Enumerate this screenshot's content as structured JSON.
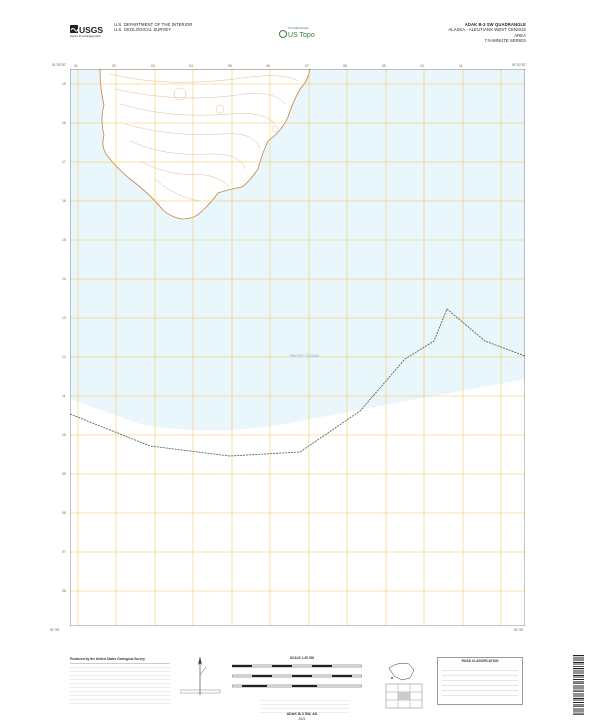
{
  "header": {
    "agency_line1": "U.S. DEPARTMENT OF THE INTERIOR",
    "agency_line2": "U.S. GEOLOGICAL SURVEY",
    "logo_text": "USGS",
    "logo_tagline": "science for a changing world",
    "ustopo_tagline": "The National Map",
    "ustopo_text": "US Topo",
    "quad_title": "ADAK B-3 SW QUADRANGLE",
    "quad_region": "ALASKA - ALEUTIANS WEST CENSUS AREA",
    "quad_series": "7.5-MINUTE SERIES"
  },
  "map": {
    "water_label": "PACIFIC OCEAN",
    "grid_top_labels": [
      "01",
      "02",
      "03",
      "04",
      "05",
      "06",
      "07",
      "08",
      "09",
      "10",
      "11"
    ],
    "grid_left_labels": [
      "19",
      "18",
      "17",
      "16",
      "15",
      "14",
      "13",
      "12",
      "11",
      "10",
      "09",
      "08",
      "07",
      "06"
    ],
    "corner_labels": {
      "top_left": "51°52'30\"",
      "top_right": "51°52'30\"",
      "bottom_left": "51°45'",
      "bottom_right": "51°45'"
    },
    "colors": {
      "water": "#e9f6fc",
      "grid": "#f1c24a",
      "contour": "#c9823f",
      "boundary": "#556b4f",
      "land": "#ffffff"
    }
  },
  "footer": {
    "producer": "Produced by the United States Geological Survey",
    "scale": "SCALE 1:25 000",
    "bottom_title": "ADAK B-3 SW, AK",
    "year": "2021",
    "legend_title": "ROAD CLASSIFICATION",
    "quad_location_title": "QUADRANGLE LOCATION",
    "adjoining_title": "ADJOINING QUADRANGLES"
  }
}
